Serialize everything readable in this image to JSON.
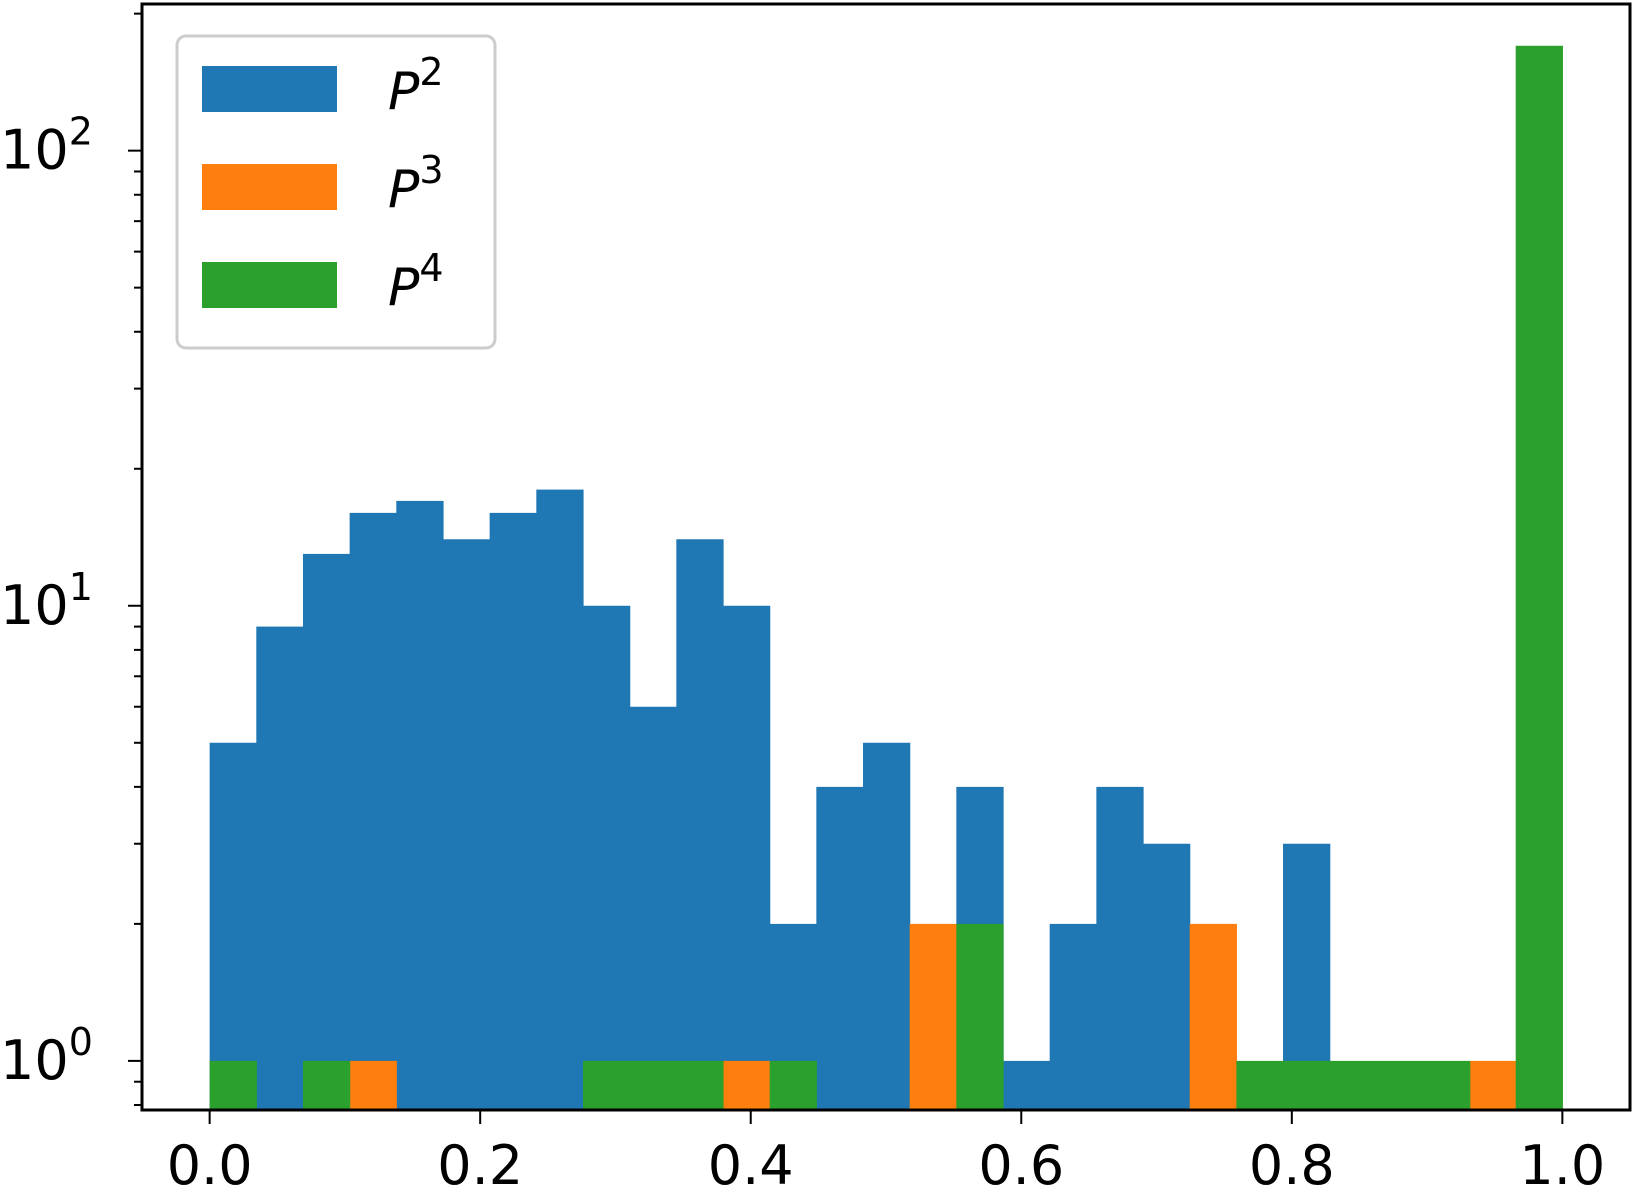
{
  "chart_data": {
    "type": "bar",
    "title": "",
    "xlabel": "",
    "ylabel": "",
    "yscale": "log",
    "xlim": [
      -0.05,
      1.05
    ],
    "ylim": [
      0.78,
      210
    ],
    "bin_width": 0.0345,
    "bin_starts": [
      0.0,
      0.0345,
      0.069,
      0.1035,
      0.138,
      0.1725,
      0.207,
      0.2415,
      0.276,
      0.3105,
      0.345,
      0.3795,
      0.414,
      0.4485,
      0.483,
      0.5175,
      0.552,
      0.5865,
      0.621,
      0.6555,
      0.69,
      0.7245,
      0.759,
      0.7935,
      0.828,
      0.8625,
      0.897,
      0.9315,
      0.9655
    ],
    "x_ticks": [
      {
        "value": 0.0,
        "label": "0.0"
      },
      {
        "value": 0.2,
        "label": "0.2"
      },
      {
        "value": 0.4,
        "label": "0.4"
      },
      {
        "value": 0.6,
        "label": "0.6"
      },
      {
        "value": 0.8,
        "label": "0.8"
      },
      {
        "value": 1.0,
        "label": "1.0"
      }
    ],
    "y_ticks": [
      {
        "value": 1,
        "base": "10",
        "exp": "0"
      },
      {
        "value": 10,
        "base": "10",
        "exp": "1"
      },
      {
        "value": 100,
        "base": "10",
        "exp": "2"
      }
    ],
    "grid": false,
    "legend_position": "top-left",
    "series": [
      {
        "name": "P",
        "sup": "2",
        "color": "#1f77b4",
        "values": [
          5,
          9,
          13,
          16,
          17,
          14,
          16,
          18,
          10,
          6,
          14,
          10,
          2,
          4,
          5,
          0,
          4,
          1,
          2,
          4,
          3,
          0,
          0,
          3,
          0,
          0,
          0,
          0,
          0
        ]
      },
      {
        "name": "P",
        "sup": "3",
        "color": "#ff7f0e",
        "values": [
          0,
          0,
          0,
          1,
          0,
          0,
          0,
          0,
          0,
          0,
          0,
          1,
          0,
          0,
          0,
          2,
          0,
          0,
          0,
          0,
          0,
          2,
          0,
          0,
          0,
          0,
          0,
          1,
          0
        ]
      },
      {
        "name": "P",
        "sup": "4",
        "color": "#2ca02c",
        "values": [
          1,
          0,
          1,
          0,
          0,
          0,
          0,
          0,
          1,
          1,
          1,
          0,
          1,
          0,
          0,
          0,
          2,
          0,
          0,
          0,
          0,
          0,
          1,
          1,
          1,
          1,
          1,
          0,
          170
        ]
      }
    ]
  }
}
